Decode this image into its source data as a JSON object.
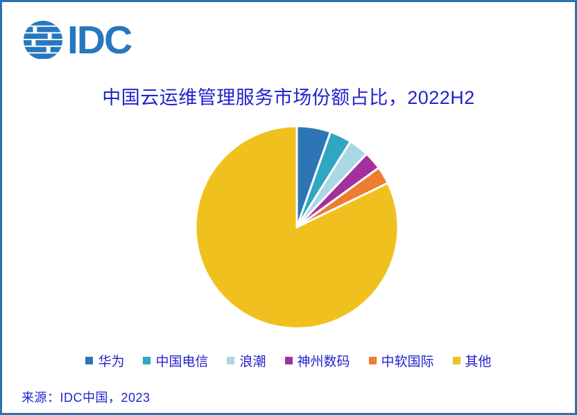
{
  "page": {
    "background": "#FFFFFF",
    "frame_color": "#2A72AE"
  },
  "logo": {
    "label": "IDC",
    "color": "#2778BE"
  },
  "title": {
    "text": "中国云运维管理服务市场份额占比，2022H2",
    "color": "#2222CC"
  },
  "chart_data": {
    "type": "pie",
    "title": "中国云运维管理服务市场份额占比，2022H2",
    "legend_position": "bottom",
    "start_angle_deg": 0,
    "direction": "clockwise",
    "units": "% market share (estimated from slice angles; no data labels shown)",
    "segments": [
      {
        "label": "华为",
        "value": 5.4,
        "color": "#2E75B6"
      },
      {
        "label": "中国电信",
        "value": 3.5,
        "color": "#31A6C2"
      },
      {
        "label": "浪潮",
        "value": 3.2,
        "color": "#A9D8E5"
      },
      {
        "label": "神州数码",
        "value": 2.9,
        "color": "#A3309C"
      },
      {
        "label": "中软国际",
        "value": 2.8,
        "color": "#ED7D31"
      },
      {
        "label": "其他",
        "value": 82.2,
        "color": "#F0C11E"
      }
    ]
  },
  "source": {
    "label": "来源：IDC中国，2023"
  }
}
